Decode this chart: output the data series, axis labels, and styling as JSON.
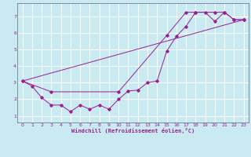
{
  "xlabel": "Windchill (Refroidissement éolien,°C)",
  "bg_color": "#c8eaf0",
  "line_color": "#9b1f8f",
  "grid_color": "#ffffff",
  "spine_color": "#7a7a9a",
  "xlim": [
    -0.5,
    23.5
  ],
  "ylim": [
    0.6,
    7.8
  ],
  "xticks": [
    0,
    1,
    2,
    3,
    4,
    5,
    6,
    7,
    8,
    9,
    10,
    11,
    12,
    13,
    14,
    15,
    16,
    17,
    18,
    19,
    20,
    21,
    22,
    23
  ],
  "yticks": [
    1,
    2,
    3,
    4,
    5,
    6,
    7
  ],
  "line1_x": [
    0,
    1,
    2,
    3,
    4,
    5,
    6,
    7,
    8,
    9,
    10,
    11,
    12,
    13,
    14,
    15,
    16,
    17,
    18,
    19,
    20,
    21,
    22,
    23
  ],
  "line1_y": [
    3.1,
    2.8,
    2.1,
    1.65,
    1.65,
    1.25,
    1.65,
    1.4,
    1.65,
    1.4,
    2.0,
    2.5,
    2.55,
    3.0,
    3.1,
    4.9,
    5.8,
    6.4,
    7.25,
    7.25,
    6.7,
    7.25,
    6.8,
    6.8
  ],
  "line2_x": [
    0,
    3,
    10,
    15,
    17,
    18,
    20,
    21,
    22,
    23
  ],
  "line2_y": [
    3.1,
    2.45,
    2.45,
    5.85,
    7.25,
    7.25,
    7.25,
    7.25,
    6.8,
    6.8
  ],
  "line3_x": [
    0,
    23
  ],
  "line3_y": [
    3.1,
    6.8
  ]
}
